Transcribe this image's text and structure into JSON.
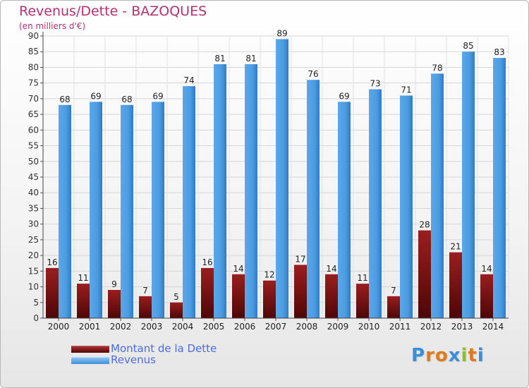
{
  "header": {
    "title": "Revenus/Dette - BAZOQUES",
    "subtitle": "(en milliers d'€)"
  },
  "legend": {
    "items": [
      {
        "label": "Montant de la Dette",
        "color": "#6e0a0a"
      },
      {
        "label": "Revenus",
        "color": "#4d9be0"
      }
    ]
  },
  "logo": {
    "text": "Proxiti",
    "colors": [
      "#3a8fd6",
      "#e07a1a",
      "#e07a1a",
      "#3a8fd6",
      "#8cbf2a",
      "#e07a1a",
      "#3a8fd6"
    ]
  },
  "chart_data": {
    "type": "bar",
    "title": "Revenus/Dette - BAZOQUES",
    "subtitle": "(en milliers d'€)",
    "categories": [
      "2000",
      "2001",
      "2002",
      "2003",
      "2004",
      "2005",
      "2006",
      "2007",
      "2008",
      "2009",
      "2010",
      "2011",
      "2012",
      "2013",
      "2014"
    ],
    "series": [
      {
        "name": "Montant de la Dette",
        "color": "#6e0a0a",
        "values": [
          16,
          11,
          9,
          7,
          5,
          16,
          14,
          12,
          17,
          14,
          11,
          7,
          28,
          21,
          14
        ]
      },
      {
        "name": "Revenus",
        "color": "#4d9be0",
        "values": [
          68,
          69,
          68,
          69,
          74,
          81,
          81,
          89,
          76,
          69,
          73,
          71,
          78,
          85,
          83
        ]
      }
    ],
    "y_ticks": [
      0,
      5,
      10,
      15,
      20,
      25,
      30,
      35,
      40,
      45,
      50,
      55,
      60,
      65,
      70,
      75,
      80,
      85,
      90
    ],
    "ylim": [
      0,
      90
    ],
    "grid": true,
    "legend_position": "bottom-left"
  }
}
